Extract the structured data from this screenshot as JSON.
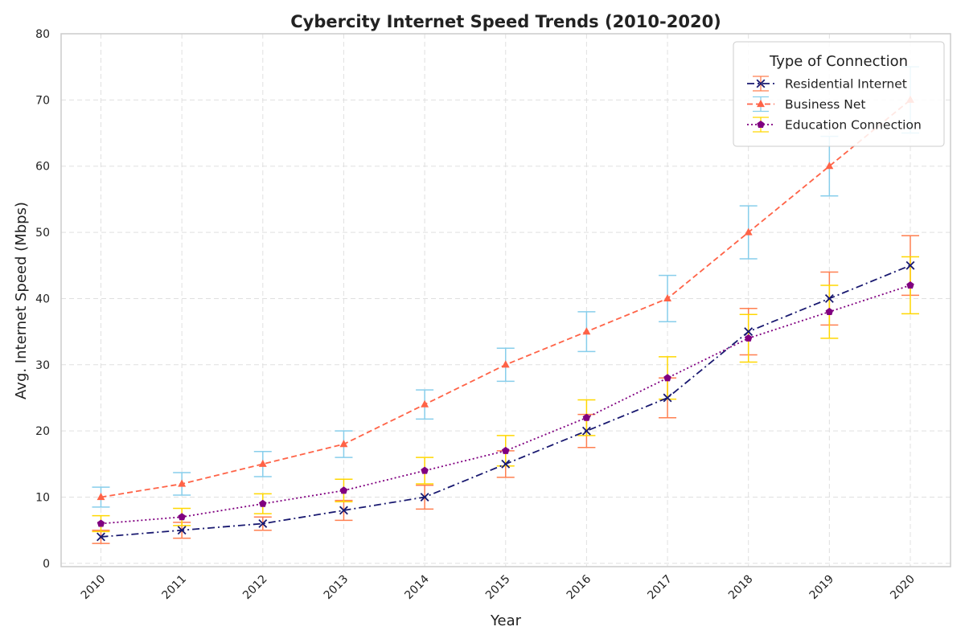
{
  "chart_data": {
    "type": "line",
    "title": "Cybercity Internet Speed Trends (2010-2020)",
    "xlabel": "Year",
    "ylabel": "Avg. Internet Speed (Mbps)",
    "ylim": [
      -0.5,
      80
    ],
    "yticks": [
      0,
      10,
      20,
      30,
      40,
      50,
      60,
      70,
      80
    ],
    "categories": [
      "2010",
      "2011",
      "2012",
      "2013",
      "2014",
      "2015",
      "2016",
      "2017",
      "2018",
      "2019",
      "2020"
    ],
    "grid": true,
    "legend": {
      "title": "Type of Connection",
      "placement": "top-right"
    },
    "series": [
      {
        "name": "Residential Internet",
        "values": [
          4,
          5,
          6,
          8,
          10,
          15,
          20,
          25,
          35,
          40,
          45
        ],
        "errors": [
          1,
          1.2,
          1,
          1.5,
          1.8,
          2,
          2.5,
          3,
          3.5,
          4,
          4.5
        ],
        "color": "#191970",
        "error_color": "#FF7F50",
        "dash": "dashdot",
        "marker": "x"
      },
      {
        "name": "Business Net",
        "values": [
          10,
          12,
          15,
          18,
          24,
          30,
          35,
          40,
          50,
          60,
          70
        ],
        "errors": [
          1.5,
          1.7,
          1.9,
          2,
          2.2,
          2.5,
          3,
          3.5,
          4,
          4.5,
          5
        ],
        "color": "#FF6347",
        "error_color": "#87CEEB",
        "dash": "dashed",
        "marker": "triangle"
      },
      {
        "name": "Education Connection",
        "values": [
          6,
          7,
          9,
          11,
          14,
          17,
          22,
          28,
          34,
          38,
          42
        ],
        "errors": [
          1.2,
          1.3,
          1.5,
          1.7,
          2,
          2.3,
          2.7,
          3.2,
          3.6,
          4,
          4.3
        ],
        "color": "#800080",
        "error_color": "#FFD700",
        "dash": "dotted",
        "marker": "pentagon"
      }
    ]
  }
}
